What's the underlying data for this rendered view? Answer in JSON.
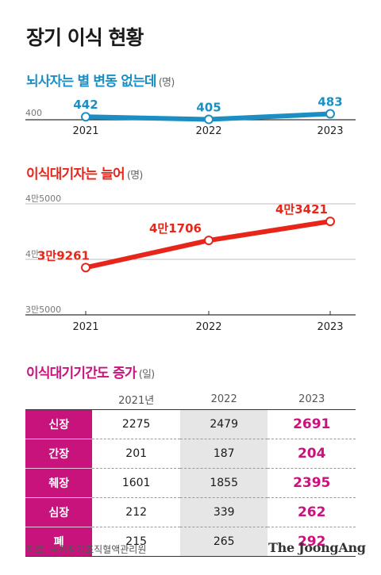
{
  "title": "장기 이식 현황",
  "source": "자료: 국립장기조직혈액관리원",
  "brand": "The JoongAng",
  "colors": {
    "blue": "#1b8fc3",
    "red": "#e8251b",
    "magenta": "#c8137c"
  },
  "chart_data": [
    {
      "type": "line",
      "title": "뇌사자는 별 변동 없는데",
      "unit": "(명)",
      "x": [
        "2021",
        "2022",
        "2023"
      ],
      "y": [
        442,
        405,
        483
      ],
      "data_labels": [
        "442",
        "405",
        "483"
      ],
      "ytick_labels": [
        "400"
      ],
      "color": "#1b8fc3"
    },
    {
      "type": "line",
      "title": "이식대기자는 늘어",
      "unit": "(명)",
      "x": [
        "2021",
        "2022",
        "2023"
      ],
      "y": [
        39261,
        41706,
        43421
      ],
      "data_labels": [
        "3만9261",
        "4만1706",
        "4만3421"
      ],
      "ylim": [
        35000,
        45000
      ],
      "ytick_labels": [
        "4만5000",
        "4만",
        "3만5000"
      ],
      "ytick_values": [
        45000,
        40000,
        35000
      ],
      "color": "#e8251b"
    },
    {
      "type": "table",
      "title": "이식대기기간도 증가",
      "unit": "(일)",
      "columns": [
        "",
        "2021년",
        "2022",
        "2023"
      ],
      "rows": [
        {
          "organ": "신장",
          "v2021": "2275",
          "v2022": "2479",
          "v2023": "2691"
        },
        {
          "organ": "간장",
          "v2021": "201",
          "v2022": "187",
          "v2023": "204"
        },
        {
          "organ": "췌장",
          "v2021": "1601",
          "v2022": "1855",
          "v2023": "2395"
        },
        {
          "organ": "심장",
          "v2021": "212",
          "v2022": "339",
          "v2023": "262"
        },
        {
          "organ": "폐",
          "v2021": "215",
          "v2022": "265",
          "v2023": "292"
        }
      ]
    }
  ]
}
